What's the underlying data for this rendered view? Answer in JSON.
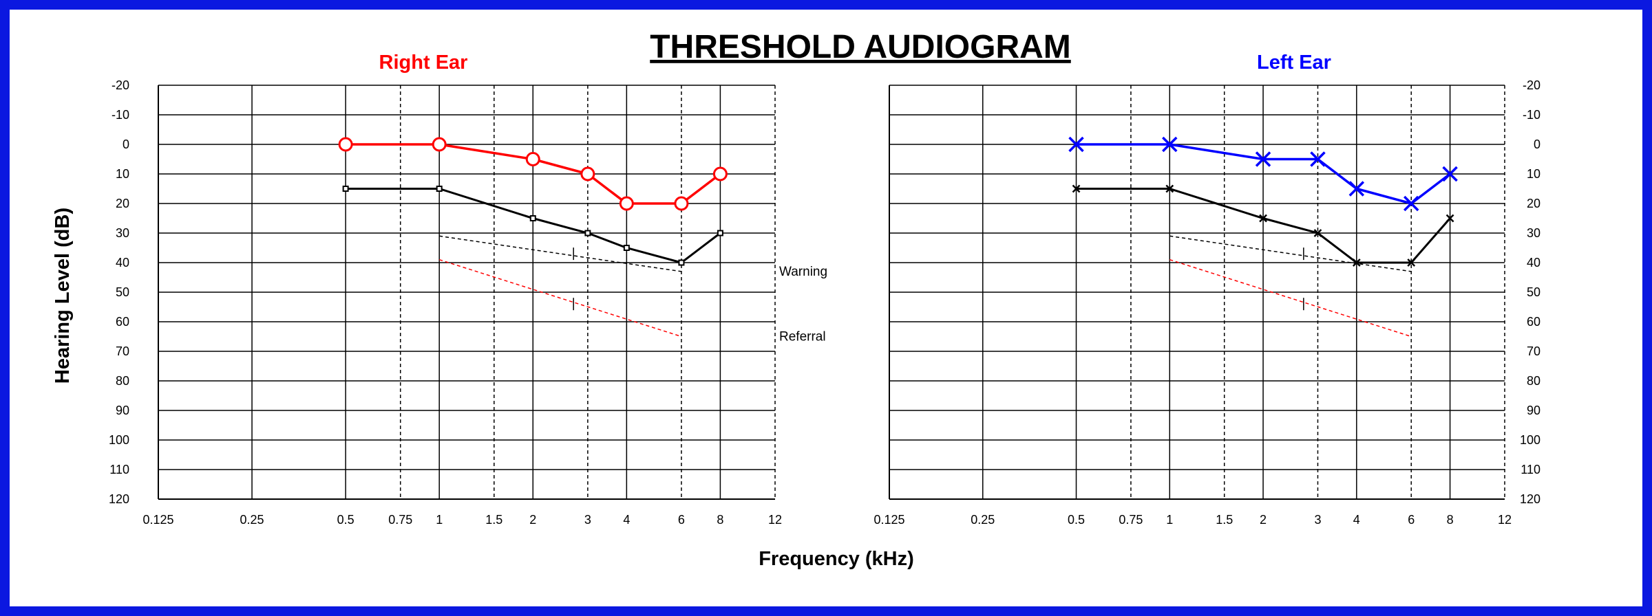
{
  "chart_data": {
    "type": "line",
    "title": "THRESHOLD AUDIOGRAM",
    "xlabel": "Frequency (kHz)",
    "ylabel": "Hearing Level (dB)",
    "x_scale": "log",
    "x_ticks": [
      0.125,
      0.25,
      0.5,
      0.75,
      1,
      1.5,
      2,
      3,
      4,
      6,
      8,
      12
    ],
    "x_tick_labels": [
      "0.125",
      "0.25",
      "0.5",
      "0.75",
      "1",
      "1.5",
      "2",
      "3",
      "4",
      "6",
      "8",
      "12"
    ],
    "x_major": [
      0.125,
      0.25,
      0.5,
      1,
      2,
      4,
      8
    ],
    "x_minor_dashed": [
      0.75,
      1.5,
      3,
      6,
      12
    ],
    "ylim": [
      -20,
      120
    ],
    "y_inverted": true,
    "y_ticks": [
      -20,
      -10,
      0,
      10,
      20,
      30,
      40,
      50,
      60,
      70,
      80,
      90,
      100,
      110,
      120
    ],
    "grid": true,
    "panels": [
      {
        "label": "Right Ear",
        "color": "#ff0000",
        "series": [
          {
            "name": "",
            "x": [
              0.5,
              1,
              2,
              3,
              4,
              6,
              8
            ],
            "y": [
              0,
              0,
              5,
              10,
              20,
              20,
              10
            ],
            "marker": "circle",
            "color": "#ff0000"
          },
          {
            "name": "",
            "x": [
              0.5,
              1,
              2,
              3,
              4,
              6,
              8
            ],
            "y": [
              15,
              15,
              25,
              30,
              35,
              40,
              30
            ],
            "marker": "square",
            "color": "#000000"
          }
        ],
        "lines": [
          {
            "label": "Warning",
            "x": [
              1,
              6
            ],
            "y": [
              31,
              43
            ],
            "color": "#000000",
            "style": "dashed",
            "mid_mark": {
              "x": 2.7,
              "y": 37
            }
          },
          {
            "label": "Referral",
            "x": [
              1,
              6
            ],
            "y": [
              39,
              65
            ],
            "color": "#ff0000",
            "style": "dashed",
            "mid_mark": {
              "x": 2.7,
              "y": 54
            }
          }
        ]
      },
      {
        "label": "Left Ear",
        "color": "#0000ff",
        "series": [
          {
            "name": "",
            "x": [
              0.5,
              1,
              2,
              3,
              4,
              6,
              8
            ],
            "y": [
              0,
              0,
              5,
              5,
              15,
              20,
              10
            ],
            "marker": "x",
            "color": "#0000ff"
          },
          {
            "name": "",
            "x": [
              0.5,
              1,
              2,
              3,
              4,
              6,
              8
            ],
            "y": [
              15,
              15,
              25,
              30,
              40,
              40,
              25
            ],
            "marker": "x-small",
            "color": "#000000"
          }
        ],
        "lines": [
          {
            "label": "",
            "x": [
              1,
              6
            ],
            "y": [
              31,
              43
            ],
            "color": "#000000",
            "style": "dashed",
            "mid_mark": {
              "x": 2.7,
              "y": 37
            }
          },
          {
            "label": "",
            "x": [
              1,
              6
            ],
            "y": [
              39,
              65
            ],
            "color": "#ff0000",
            "style": "dashed",
            "mid_mark": {
              "x": 2.7,
              "y": 54
            }
          }
        ]
      }
    ]
  }
}
